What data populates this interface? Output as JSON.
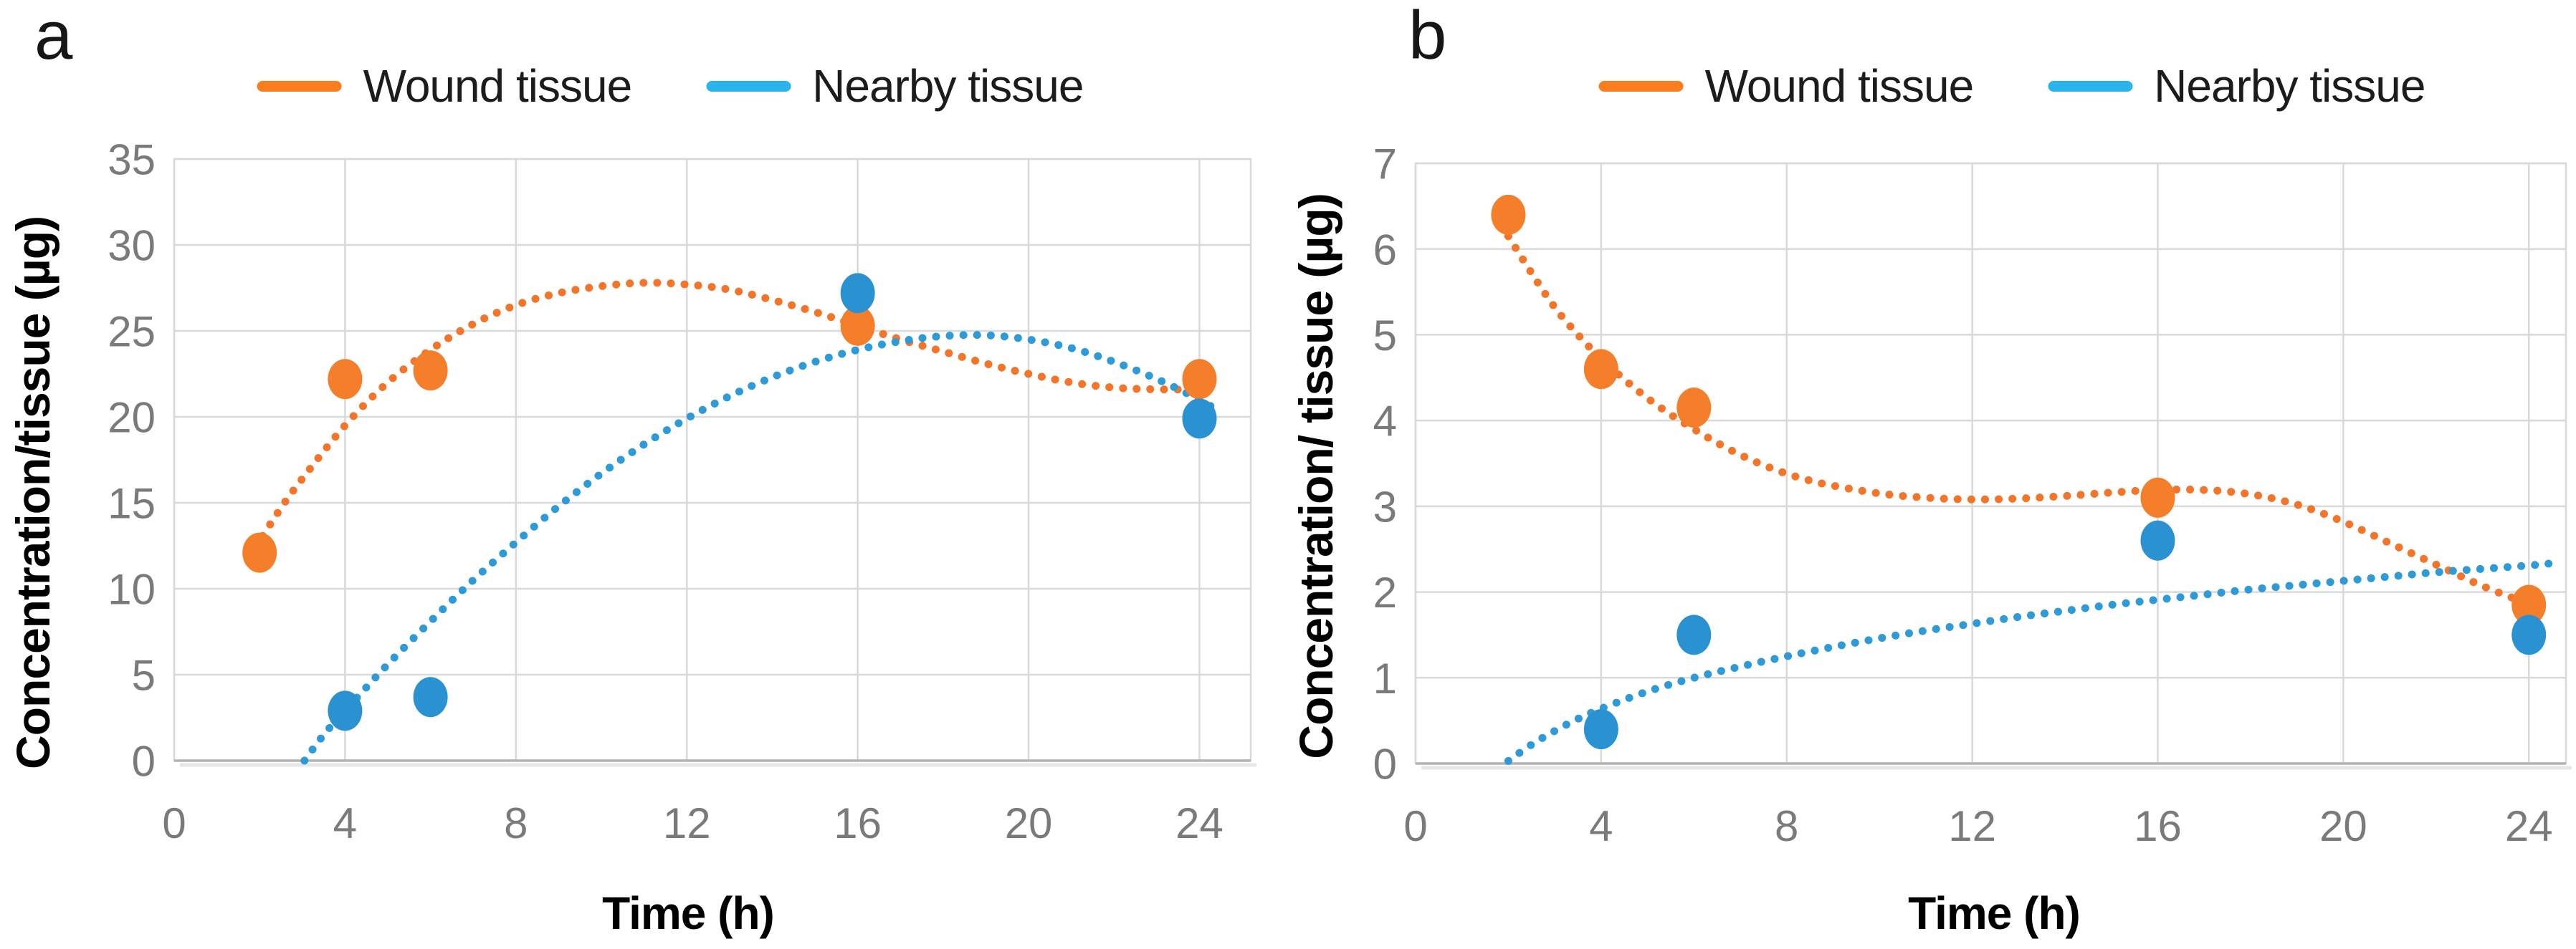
{
  "figure_background": "#ffffff",
  "grid_color": "#d9d9d9",
  "axis_line_color": "#b3b3b3",
  "tick_label_color": "#7a7a7a",
  "chart_data": [
    {
      "panel_label": "a",
      "type": "scatter",
      "title": "",
      "xlabel": "Time (h)",
      "ylabel": "Concentration/tissue (µg)",
      "x_ticks": [
        0,
        4,
        8,
        12,
        16,
        20,
        24
      ],
      "y_ticks": [
        0,
        5,
        10,
        15,
        20,
        25,
        30,
        35
      ],
      "xlim": [
        0,
        25.2
      ],
      "ylim": [
        0,
        35
      ],
      "grid": true,
      "legend_position": "top",
      "legend": [
        {
          "label": "Wound tissue",
          "color": "#fa7d1e"
        },
        {
          "label": "Nearby tissue",
          "color": "#2bb3ec"
        }
      ],
      "series": [
        {
          "name": "Wound tissue",
          "marker_color": "#f57e2b",
          "trend_color": "#f2752a",
          "points": [
            [
              2,
              12.1
            ],
            [
              4,
              22.2
            ],
            [
              6,
              22.7
            ],
            [
              16,
              25.3
            ],
            [
              24,
              22.2
            ]
          ],
          "trendline": [
            [
              1.9,
              12.4
            ],
            [
              2.5,
              14.7
            ],
            [
              3,
              16.4
            ],
            [
              4,
              19.5
            ],
            [
              5,
              22.0
            ],
            [
              6,
              23.9
            ],
            [
              7,
              25.4
            ],
            [
              8,
              26.5
            ],
            [
              9,
              27.2
            ],
            [
              10,
              27.6
            ],
            [
              11,
              27.8
            ],
            [
              12,
              27.7
            ],
            [
              13,
              27.4
            ],
            [
              14,
              26.8
            ],
            [
              15,
              26.1
            ],
            [
              16,
              25.3
            ],
            [
              17,
              24.5
            ],
            [
              18,
              23.8
            ],
            [
              19,
              23.1
            ],
            [
              20,
              22.5
            ],
            [
              21,
              22.0
            ],
            [
              22,
              21.7
            ],
            [
              23,
              21.6
            ],
            [
              24.2,
              21.6
            ]
          ]
        },
        {
          "name": "Nearby tissue",
          "marker_color": "#2b92d2",
          "trend_color": "#2e9ad6",
          "points": [
            [
              4,
              2.9
            ],
            [
              6,
              3.7
            ],
            [
              16,
              27.2
            ],
            [
              24,
              19.9
            ]
          ],
          "trendline": [
            [
              3.05,
              0
            ],
            [
              3.5,
              1.5
            ],
            [
              4,
              2.9
            ],
            [
              5,
              5.6
            ],
            [
              6,
              8.1
            ],
            [
              7,
              10.5
            ],
            [
              8,
              12.7
            ],
            [
              9,
              14.8
            ],
            [
              10,
              16.7
            ],
            [
              11,
              18.4
            ],
            [
              12,
              19.9
            ],
            [
              13,
              21.2
            ],
            [
              14,
              22.3
            ],
            [
              15,
              23.2
            ],
            [
              16,
              23.9
            ],
            [
              17,
              24.4
            ],
            [
              18,
              24.7
            ],
            [
              19,
              24.75
            ],
            [
              20,
              24.5
            ],
            [
              21,
              24.0
            ],
            [
              22,
              23.2
            ],
            [
              23,
              22.2
            ],
            [
              24,
              21.0
            ],
            [
              24.4,
              20.4
            ]
          ]
        }
      ]
    },
    {
      "panel_label": "b",
      "type": "scatter",
      "title": "",
      "xlabel": "Time (h)",
      "ylabel": "Concentration/ tissue (µg)",
      "x_ticks": [
        0,
        4,
        8,
        12,
        16,
        20,
        24
      ],
      "y_ticks": [
        0,
        1,
        2,
        3,
        4,
        5,
        6,
        7
      ],
      "xlim": [
        0,
        24.8
      ],
      "ylim": [
        0,
        7
      ],
      "grid": true,
      "legend_position": "top",
      "legend": [
        {
          "label": "Wound tissue",
          "color": "#fa7d1e"
        },
        {
          "label": "Nearby tissue",
          "color": "#2bb3ec"
        }
      ],
      "series": [
        {
          "name": "Wound tissue",
          "marker_color": "#f57e2b",
          "trend_color": "#f2752a",
          "points": [
            [
              2,
              6.4
            ],
            [
              4,
              4.6
            ],
            [
              6,
              4.15
            ],
            [
              16,
              3.1
            ],
            [
              24,
              1.85
            ]
          ],
          "trendline": [
            [
              2,
              6.15
            ],
            [
              2.5,
              5.72
            ],
            [
              3,
              5.32
            ],
            [
              3.5,
              5.0
            ],
            [
              4,
              4.72
            ],
            [
              4.5,
              4.48
            ],
            [
              5,
              4.26
            ],
            [
              5.5,
              4.07
            ],
            [
              6,
              3.9
            ],
            [
              6.5,
              3.74
            ],
            [
              7,
              3.6
            ],
            [
              7.5,
              3.48
            ],
            [
              8,
              3.38
            ],
            [
              8.5,
              3.3
            ],
            [
              9,
              3.24
            ],
            [
              10,
              3.15
            ],
            [
              11,
              3.1
            ],
            [
              12,
              3.08
            ],
            [
              13,
              3.09
            ],
            [
              14,
              3.12
            ],
            [
              15,
              3.16
            ],
            [
              16,
              3.19
            ],
            [
              17,
              3.19
            ],
            [
              18,
              3.14
            ],
            [
              19,
              3.02
            ],
            [
              20,
              2.82
            ],
            [
              21,
              2.57
            ],
            [
              22,
              2.32
            ],
            [
              23,
              2.07
            ],
            [
              24,
              1.86
            ]
          ]
        },
        {
          "name": "Nearby tissue",
          "marker_color": "#2b92d2",
          "trend_color": "#2e9ad6",
          "points": [
            [
              4,
              0.4
            ],
            [
              6,
              1.5
            ],
            [
              16,
              2.6
            ],
            [
              24,
              1.5
            ]
          ],
          "trendline": [
            [
              2,
              0.03
            ],
            [
              2.5,
              0.22
            ],
            [
              3,
              0.38
            ],
            [
              3.5,
              0.52
            ],
            [
              4,
              0.64
            ],
            [
              5,
              0.84
            ],
            [
              6,
              1.0
            ],
            [
              7,
              1.13
            ],
            [
              8,
              1.25
            ],
            [
              9,
              1.36
            ],
            [
              10,
              1.46
            ],
            [
              11,
              1.55
            ],
            [
              12,
              1.63
            ],
            [
              13,
              1.71
            ],
            [
              14,
              1.78
            ],
            [
              15,
              1.85
            ],
            [
              16,
              1.91
            ],
            [
              17,
              1.97
            ],
            [
              18,
              2.03
            ],
            [
              19,
              2.08
            ],
            [
              20,
              2.13
            ],
            [
              21,
              2.18
            ],
            [
              22,
              2.23
            ],
            [
              23,
              2.27
            ],
            [
              24,
              2.31
            ],
            [
              24.6,
              2.34
            ]
          ]
        }
      ]
    }
  ]
}
